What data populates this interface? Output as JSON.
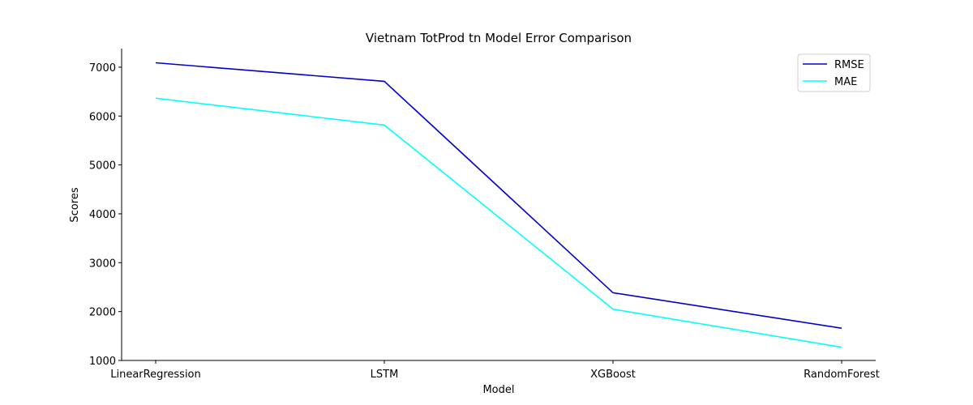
{
  "chart_data": {
    "type": "line",
    "title": "Vietnam TotProd tn Model Error Comparison",
    "xlabel": "Model",
    "ylabel": "Scores",
    "categories": [
      "LinearRegression",
      "LSTM",
      "XGBoost",
      "RandomForest"
    ],
    "ylim": [
      1000,
      7380
    ],
    "yticks": [
      1000,
      2000,
      3000,
      4000,
      5000,
      6000,
      7000
    ],
    "grid": false,
    "legend_position": "top-right",
    "series": [
      {
        "name": "RMSE",
        "color": "#0000cd",
        "values": [
          7090,
          6710,
          2385,
          1660
        ]
      },
      {
        "name": "MAE",
        "color": "#00ffff",
        "values": [
          6365,
          5815,
          2050,
          1270
        ]
      }
    ]
  }
}
